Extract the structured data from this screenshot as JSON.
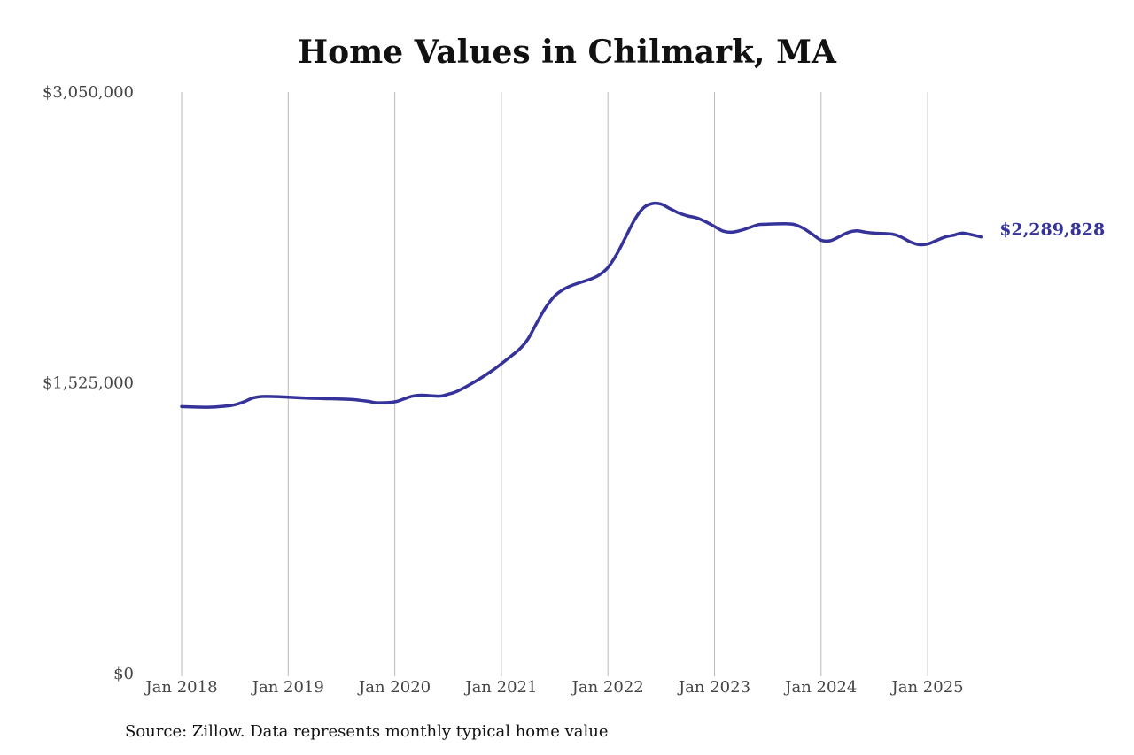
{
  "chart_data": {
    "type": "line",
    "title": "Home Values in Chilmark, MA",
    "source": "Source: Zillow. Data represents monthly typical home value",
    "xlabel": "",
    "ylabel": "",
    "y_ticks": [
      {
        "value": 0,
        "label": "$0"
      },
      {
        "value": 1525000,
        "label": "$1,525,000"
      },
      {
        "value": 3050000,
        "label": "$3,050,000"
      }
    ],
    "x_ticks": [
      {
        "value": "2018-01",
        "label": "Jan 2018"
      },
      {
        "value": "2019-01",
        "label": "Jan 2019"
      },
      {
        "value": "2020-01",
        "label": "Jan 2020"
      },
      {
        "value": "2021-01",
        "label": "Jan 2021"
      },
      {
        "value": "2022-01",
        "label": "Jan 2022"
      },
      {
        "value": "2023-01",
        "label": "Jan 2023"
      },
      {
        "value": "2024-01",
        "label": "Jan 2024"
      },
      {
        "value": "2025-01",
        "label": "Jan 2025"
      }
    ],
    "xlim": [
      "2018-01",
      "2025-07"
    ],
    "ylim": [
      0,
      3050000
    ],
    "grid": {
      "vertical": true,
      "horizontal": false
    },
    "line_color": "#35339a",
    "end_label": "$2,289,828",
    "series": [
      {
        "points": [
          [
            "2018-01",
            1400000
          ],
          [
            "2018-04",
            1397000
          ],
          [
            "2018-06",
            1403000
          ],
          [
            "2018-07",
            1410000
          ],
          [
            "2018-08",
            1425000
          ],
          [
            "2018-09",
            1445000
          ],
          [
            "2018-10",
            1453000
          ],
          [
            "2018-12",
            1452000
          ],
          [
            "2019-03",
            1445000
          ],
          [
            "2019-05",
            1442000
          ],
          [
            "2019-08",
            1438000
          ],
          [
            "2019-10",
            1428000
          ],
          [
            "2019-11",
            1420000
          ],
          [
            "2020-01",
            1425000
          ],
          [
            "2020-02",
            1440000
          ],
          [
            "2020-03",
            1455000
          ],
          [
            "2020-04",
            1460000
          ],
          [
            "2020-06",
            1455000
          ],
          [
            "2020-07",
            1465000
          ],
          [
            "2020-08",
            1480000
          ],
          [
            "2020-10",
            1530000
          ],
          [
            "2020-12",
            1590000
          ],
          [
            "2021-01",
            1625000
          ],
          [
            "2021-03",
            1700000
          ],
          [
            "2021-04",
            1755000
          ],
          [
            "2021-05",
            1840000
          ],
          [
            "2021-06",
            1920000
          ],
          [
            "2021-07",
            1980000
          ],
          [
            "2021-08",
            2015000
          ],
          [
            "2021-09",
            2037000
          ],
          [
            "2021-11",
            2068000
          ],
          [
            "2021-12",
            2090000
          ],
          [
            "2022-01",
            2130000
          ],
          [
            "2022-02",
            2200000
          ],
          [
            "2022-03",
            2290000
          ],
          [
            "2022-04",
            2380000
          ],
          [
            "2022-05",
            2443000
          ],
          [
            "2022-06",
            2465000
          ],
          [
            "2022-07",
            2462000
          ],
          [
            "2022-08",
            2438000
          ],
          [
            "2022-09",
            2415000
          ],
          [
            "2022-10",
            2400000
          ],
          [
            "2022-11",
            2390000
          ],
          [
            "2022-12",
            2370000
          ],
          [
            "2023-01",
            2345000
          ],
          [
            "2023-02",
            2320000
          ],
          [
            "2023-03",
            2315000
          ],
          [
            "2023-04",
            2325000
          ],
          [
            "2023-05",
            2340000
          ],
          [
            "2023-06",
            2355000
          ],
          [
            "2023-07",
            2357000
          ],
          [
            "2023-09",
            2359000
          ],
          [
            "2023-10",
            2355000
          ],
          [
            "2023-11",
            2335000
          ],
          [
            "2023-12",
            2305000
          ],
          [
            "2024-01",
            2273000
          ],
          [
            "2024-02",
            2270000
          ],
          [
            "2024-03",
            2290000
          ],
          [
            "2024-04",
            2313000
          ],
          [
            "2024-05",
            2322000
          ],
          [
            "2024-06",
            2315000
          ],
          [
            "2024-07",
            2310000
          ],
          [
            "2024-09",
            2305000
          ],
          [
            "2024-10",
            2290000
          ],
          [
            "2024-11",
            2265000
          ],
          [
            "2024-12",
            2250000
          ],
          [
            "2025-01",
            2253000
          ],
          [
            "2025-02",
            2272000
          ],
          [
            "2025-03",
            2290000
          ],
          [
            "2025-04",
            2300000
          ],
          [
            "2025-05",
            2310000
          ],
          [
            "2025-07",
            2289828
          ]
        ]
      }
    ]
  }
}
